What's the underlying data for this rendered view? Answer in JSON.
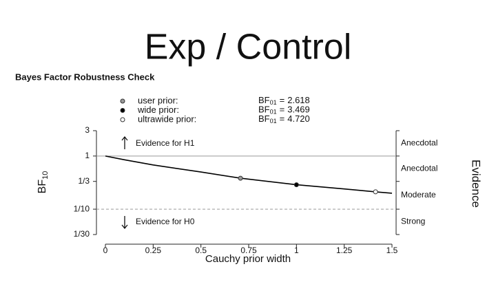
{
  "slide_title": "Exp / Control",
  "chart_data": {
    "type": "line",
    "title": "Bayes Factor Robustness Check",
    "x_label": "Cauchy prior width",
    "y_label": "BF",
    "y_label_subscript": "10",
    "right_label": "Evidence",
    "log_y": true,
    "xlim": [
      0,
      1.5
    ],
    "xticks": [
      0,
      0.25,
      0.5,
      0.75,
      1,
      1.25,
      1.5
    ],
    "ylim": [
      0.0333,
      3
    ],
    "yticks": [
      {
        "value": 0.0333,
        "label": "1/30"
      },
      {
        "value": 0.1,
        "label": "1/10"
      },
      {
        "value": 0.3333,
        "label": "1/3"
      },
      1,
      3
    ],
    "ref_lines": [
      {
        "value": 1,
        "style": "solid"
      },
      {
        "value": 0.1,
        "style": "dashed"
      }
    ],
    "evidence_bands": [
      "Anecdotal",
      "Anecdotal",
      "Moderate",
      "Strong"
    ],
    "annotations": [
      "Evidence for H1",
      "Evidence for H0"
    ],
    "x": [
      0,
      0.1,
      0.25,
      0.5,
      0.707,
      1,
      1.25,
      1.414,
      1.5
    ],
    "values": [
      1,
      0.85,
      0.68,
      0.5,
      0.382,
      0.288,
      0.24,
      0.212,
      0.2
    ],
    "color": "#000000",
    "stat_label": "BF",
    "stat_subscript": "01",
    "stat_relation": "=",
    "points": [
      {
        "name": "user prior:",
        "bf01": 2.618,
        "x": 0.707,
        "value": 0.382,
        "color": "#999999"
      },
      {
        "name": "wide prior:",
        "bf01": 3.469,
        "x": 1,
        "value": 0.288,
        "color": "#000000"
      },
      {
        "name": "ultrawide prior:",
        "bf01": 4.72,
        "bf01_label": "4.720",
        "x": 1.414,
        "value": 0.212,
        "color": "#ffffff"
      }
    ]
  }
}
